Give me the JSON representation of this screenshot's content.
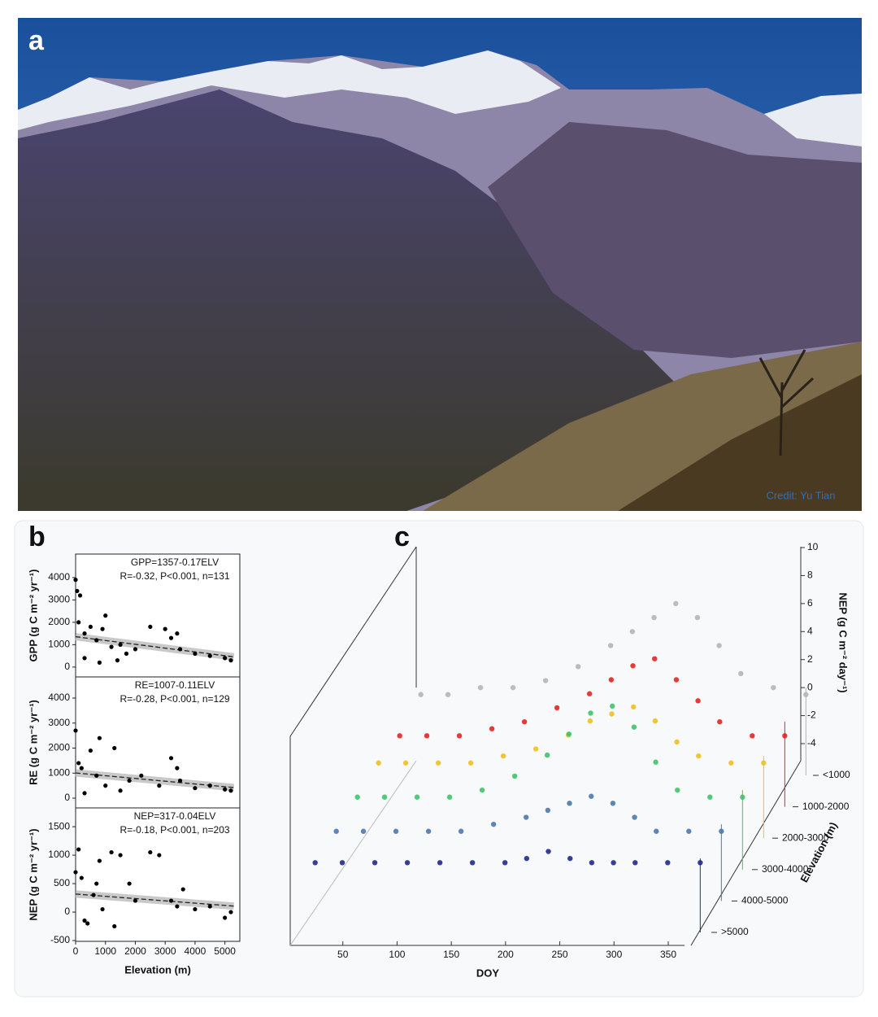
{
  "panel_labels": [
    "a",
    "b",
    "c"
  ],
  "photo": {
    "credit": "Credit: Yu Tian"
  },
  "chart_data": [
    {
      "type": "scatter",
      "color": "#000000",
      "equation": "GPP=1357-0.17ELV",
      "stats": "R=-0.32, P<0.001, n=131",
      "ylabel": "GPP (g C m⁻² yr⁻¹)",
      "xlim": [
        0,
        5500
      ],
      "ylim": [
        -440,
        5050
      ],
      "yticks": [
        0,
        1000,
        2000,
        3000,
        4000
      ],
      "x": [
        0,
        50,
        150,
        100,
        300,
        500,
        700,
        900,
        1000,
        1200,
        1400,
        1500,
        1700,
        2000,
        2500,
        3000,
        3200,
        3400,
        3500,
        4000,
        4500,
        5000,
        5200,
        300,
        800
      ],
      "values": [
        3900,
        3400,
        3200,
        2000,
        1500,
        1800,
        1200,
        1700,
        2300,
        900,
        300,
        1000,
        600,
        800,
        1800,
        1700,
        1300,
        1500,
        800,
        600,
        500,
        400,
        300,
        400,
        200
      ],
      "trend_x": [
        0,
        5300
      ],
      "trend_y": [
        1357,
        456
      ]
    },
    {
      "type": "scatter",
      "color": "#000000",
      "equation": "RE=1007-0.11ELV",
      "stats": "R=-0.28, P<0.001, n=129",
      "ylabel": "RE (g C m⁻² yr⁻¹)",
      "xlim": [
        0,
        5500
      ],
      "ylim": [
        -390,
        4845
      ],
      "yticks": [
        0,
        1000,
        2000,
        3000,
        4000
      ],
      "x": [
        0,
        100,
        200,
        500,
        800,
        1000,
        1300,
        1500,
        1800,
        2200,
        2800,
        3200,
        3400,
        3500,
        4000,
        4500,
        5000,
        5200,
        300,
        700
      ],
      "values": [
        2700,
        1400,
        1200,
        1900,
        2400,
        500,
        2000,
        300,
        700,
        900,
        500,
        1600,
        1200,
        700,
        400,
        500,
        350,
        300,
        200,
        900
      ],
      "trend_x": [
        0,
        5300
      ],
      "trend_y": [
        1007,
        424
      ]
    },
    {
      "type": "scatter",
      "color": "#000000",
      "equation": "NEP=317-0.04ELV",
      "stats": "R=-0.18, P<0.001, n=203",
      "ylabel": "NEP (g C m⁻² yr⁻¹)",
      "xlabel": "Elevation (m)",
      "xlim": [
        0,
        5500
      ],
      "ylim": [
        -514,
        1830
      ],
      "yticks": [
        -500,
        0,
        500,
        1000,
        1500
      ],
      "xticks": [
        0,
        1000,
        2000,
        3000,
        4000,
        5000
      ],
      "x": [
        0,
        100,
        200,
        400,
        600,
        800,
        1200,
        1500,
        1800,
        2000,
        2500,
        2800,
        3200,
        3400,
        3600,
        4000,
        4500,
        5000,
        5200,
        300,
        900,
        1300,
        700
      ],
      "values": [
        700,
        1100,
        600,
        -200,
        300,
        900,
        1050,
        1000,
        500,
        200,
        1050,
        1000,
        200,
        100,
        400,
        50,
        100,
        -100,
        0,
        -150,
        50,
        -250,
        500
      ],
      "trend_x": [
        0,
        5300
      ],
      "trend_y": [
        317,
        105
      ]
    },
    {
      "type": "scatter3d",
      "xlabel": "DOY",
      "ylabel": "NEP (g C m⁻² day⁻¹)",
      "zlabel": "Elevation (m)",
      "xlim": [
        0,
        365
      ],
      "xticks": [
        50,
        100,
        150,
        200,
        250,
        300,
        350
      ],
      "ylim": [
        -4,
        10
      ],
      "yticks": [
        -4,
        -2,
        0,
        2,
        4,
        6,
        8,
        10
      ],
      "x": [
        5,
        30,
        60,
        90,
        120,
        150,
        180,
        200,
        220,
        240,
        260,
        280,
        300,
        330,
        360
      ],
      "series": [
        {
          "name": "<1000",
          "color": "#b5b5b5",
          "values": [
            -0.5,
            -0.5,
            0,
            0,
            0.5,
            1.5,
            3,
            4,
            5,
            6,
            5,
            3,
            1,
            0,
            -0.5
          ]
        },
        {
          "name": "1000-2000",
          "color": "#e8231f",
          "values": [
            -1,
            -1,
            -1,
            -0.5,
            0,
            1,
            2,
            3,
            4,
            4.5,
            3,
            1.5,
            0,
            -1,
            -1
          ]
        },
        {
          "name": "2000-3000",
          "color": "#f0c020",
          "values": [
            -0.5,
            -0.5,
            -0.5,
            -0.5,
            0,
            0.5,
            1.5,
            2.5,
            3,
            3.5,
            2.5,
            1,
            0,
            -0.5,
            -0.5
          ]
        },
        {
          "name": "3000-4000",
          "color": "#3cc46a",
          "values": [
            -0.5,
            -0.5,
            -0.5,
            -0.5,
            0,
            1,
            2.5,
            4,
            5.5,
            6,
            4.5,
            2,
            0,
            -0.5,
            -0.5
          ]
        },
        {
          "name": "4000-5000",
          "color": "#4a78b0",
          "values": [
            -0.5,
            -0.5,
            -0.5,
            -0.5,
            -0.5,
            0,
            0.5,
            1,
            1.5,
            2,
            1.5,
            0.5,
            -0.5,
            -0.5,
            -0.5
          ]
        },
        {
          "name": ">5000",
          "color": "#1f2a8a",
          "values": [
            -0.3,
            -0.3,
            -0.3,
            -0.3,
            -0.3,
            -0.3,
            -0.3,
            0,
            0.5,
            0,
            -0.3,
            -0.3,
            -0.3,
            -0.3,
            -0.3
          ]
        }
      ]
    }
  ]
}
